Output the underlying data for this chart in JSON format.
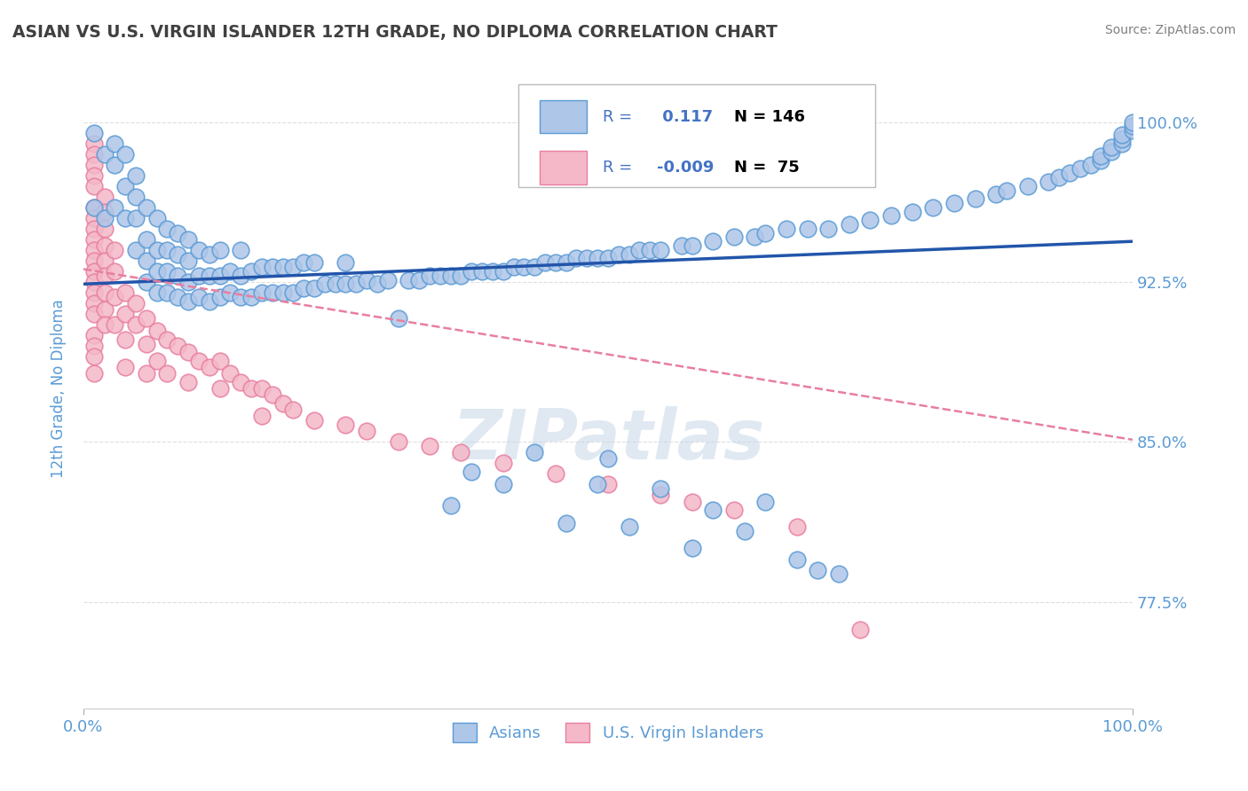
{
  "title": "ASIAN VS U.S. VIRGIN ISLANDER 12TH GRADE, NO DIPLOMA CORRELATION CHART",
  "source": "Source: ZipAtlas.com",
  "ylabel": "12th Grade, No Diploma",
  "watermark": "ZIPatlas",
  "xlim": [
    0.0,
    1.0
  ],
  "ylim": [
    0.725,
    1.025
  ],
  "x_tick_labels": [
    "0.0%",
    "100.0%"
  ],
  "y_tick_labels": [
    "77.5%",
    "85.0%",
    "92.5%",
    "100.0%"
  ],
  "y_tick_values": [
    0.775,
    0.85,
    0.925,
    1.0
  ],
  "asian_R": 0.117,
  "asian_N": 146,
  "vi_R": -0.009,
  "vi_N": 75,
  "legend_asian_label": "Asians",
  "legend_vi_label": "U.S. Virgin Islanders",
  "asian_color": "#aec6e8",
  "asian_edge_color": "#5b9bd5",
  "vi_color": "#f4b8c8",
  "vi_edge_color": "#e87fa0",
  "asian_line_color": "#2255aa",
  "vi_line_color": "#e87fa0",
  "title_color": "#404040",
  "source_color": "#808080",
  "tick_color": "#5b9bd5",
  "legend_text_color": "#4472c4",
  "background_color": "#ffffff",
  "grid_color": "#d0d0d0",
  "watermark_color": "#c8d8e8",
  "asian_x": [
    0.01,
    0.01,
    0.02,
    0.02,
    0.03,
    0.03,
    0.03,
    0.04,
    0.04,
    0.04,
    0.05,
    0.05,
    0.05,
    0.05,
    0.06,
    0.06,
    0.06,
    0.06,
    0.07,
    0.07,
    0.07,
    0.07,
    0.08,
    0.08,
    0.08,
    0.08,
    0.09,
    0.09,
    0.09,
    0.09,
    0.1,
    0.1,
    0.1,
    0.1,
    0.11,
    0.11,
    0.11,
    0.12,
    0.12,
    0.12,
    0.13,
    0.13,
    0.13,
    0.14,
    0.14,
    0.15,
    0.15,
    0.15,
    0.16,
    0.16,
    0.17,
    0.17,
    0.18,
    0.18,
    0.19,
    0.19,
    0.2,
    0.2,
    0.21,
    0.21,
    0.22,
    0.22,
    0.23,
    0.24,
    0.25,
    0.25,
    0.26,
    0.27,
    0.28,
    0.29,
    0.3,
    0.31,
    0.32,
    0.33,
    0.34,
    0.35,
    0.36,
    0.37,
    0.38,
    0.39,
    0.4,
    0.41,
    0.42,
    0.43,
    0.44,
    0.45,
    0.46,
    0.47,
    0.48,
    0.49,
    0.5,
    0.51,
    0.52,
    0.53,
    0.54,
    0.55,
    0.57,
    0.58,
    0.6,
    0.62,
    0.64,
    0.65,
    0.67,
    0.69,
    0.71,
    0.73,
    0.75,
    0.77,
    0.79,
    0.81,
    0.83,
    0.85,
    0.87,
    0.88,
    0.9,
    0.92,
    0.93,
    0.94,
    0.95,
    0.96,
    0.97,
    0.97,
    0.98,
    0.98,
    0.99,
    0.99,
    0.99,
    1.0,
    1.0,
    1.0,
    0.35,
    0.37,
    0.4,
    0.43,
    0.46,
    0.49,
    0.5,
    0.52,
    0.55,
    0.58,
    0.6,
    0.63,
    0.65,
    0.68,
    0.7,
    0.72
  ],
  "asian_y": [
    0.96,
    0.995,
    0.955,
    0.985,
    0.96,
    0.98,
    0.99,
    0.955,
    0.97,
    0.985,
    0.94,
    0.955,
    0.965,
    0.975,
    0.925,
    0.935,
    0.945,
    0.96,
    0.92,
    0.93,
    0.94,
    0.955,
    0.92,
    0.93,
    0.94,
    0.95,
    0.918,
    0.928,
    0.938,
    0.948,
    0.916,
    0.925,
    0.935,
    0.945,
    0.918,
    0.928,
    0.94,
    0.916,
    0.928,
    0.938,
    0.918,
    0.928,
    0.94,
    0.92,
    0.93,
    0.918,
    0.928,
    0.94,
    0.918,
    0.93,
    0.92,
    0.932,
    0.92,
    0.932,
    0.92,
    0.932,
    0.92,
    0.932,
    0.922,
    0.934,
    0.922,
    0.934,
    0.924,
    0.924,
    0.924,
    0.934,
    0.924,
    0.926,
    0.924,
    0.926,
    0.908,
    0.926,
    0.926,
    0.928,
    0.928,
    0.928,
    0.928,
    0.93,
    0.93,
    0.93,
    0.93,
    0.932,
    0.932,
    0.932,
    0.934,
    0.934,
    0.934,
    0.936,
    0.936,
    0.936,
    0.936,
    0.938,
    0.938,
    0.94,
    0.94,
    0.94,
    0.942,
    0.942,
    0.944,
    0.946,
    0.946,
    0.948,
    0.95,
    0.95,
    0.95,
    0.952,
    0.954,
    0.956,
    0.958,
    0.96,
    0.962,
    0.964,
    0.966,
    0.968,
    0.97,
    0.972,
    0.974,
    0.976,
    0.978,
    0.98,
    0.982,
    0.984,
    0.986,
    0.988,
    0.99,
    0.992,
    0.994,
    0.996,
    0.998,
    1.0,
    0.82,
    0.836,
    0.83,
    0.845,
    0.812,
    0.83,
    0.842,
    0.81,
    0.828,
    0.8,
    0.818,
    0.808,
    0.822,
    0.795,
    0.79,
    0.788
  ],
  "vi_x": [
    0.01,
    0.01,
    0.01,
    0.01,
    0.01,
    0.01,
    0.01,
    0.01,
    0.01,
    0.01,
    0.01,
    0.01,
    0.01,
    0.01,
    0.01,
    0.01,
    0.01,
    0.01,
    0.01,
    0.01,
    0.02,
    0.02,
    0.02,
    0.02,
    0.02,
    0.02,
    0.02,
    0.02,
    0.02,
    0.03,
    0.03,
    0.03,
    0.03,
    0.04,
    0.04,
    0.04,
    0.04,
    0.05,
    0.05,
    0.06,
    0.06,
    0.06,
    0.07,
    0.07,
    0.08,
    0.08,
    0.09,
    0.1,
    0.1,
    0.11,
    0.12,
    0.13,
    0.13,
    0.14,
    0.15,
    0.16,
    0.17,
    0.17,
    0.18,
    0.19,
    0.2,
    0.22,
    0.25,
    0.27,
    0.3,
    0.33,
    0.36,
    0.4,
    0.45,
    0.5,
    0.55,
    0.58,
    0.62,
    0.68,
    0.74
  ],
  "vi_y": [
    0.99,
    0.985,
    0.98,
    0.975,
    0.97,
    0.96,
    0.955,
    0.95,
    0.945,
    0.94,
    0.935,
    0.93,
    0.925,
    0.92,
    0.915,
    0.91,
    0.9,
    0.895,
    0.89,
    0.882,
    0.965,
    0.958,
    0.95,
    0.942,
    0.935,
    0.928,
    0.92,
    0.912,
    0.905,
    0.94,
    0.93,
    0.918,
    0.905,
    0.92,
    0.91,
    0.898,
    0.885,
    0.915,
    0.905,
    0.908,
    0.896,
    0.882,
    0.902,
    0.888,
    0.898,
    0.882,
    0.895,
    0.892,
    0.878,
    0.888,
    0.885,
    0.888,
    0.875,
    0.882,
    0.878,
    0.875,
    0.875,
    0.862,
    0.872,
    0.868,
    0.865,
    0.86,
    0.858,
    0.855,
    0.85,
    0.848,
    0.845,
    0.84,
    0.835,
    0.83,
    0.825,
    0.822,
    0.818,
    0.81,
    0.762
  ]
}
